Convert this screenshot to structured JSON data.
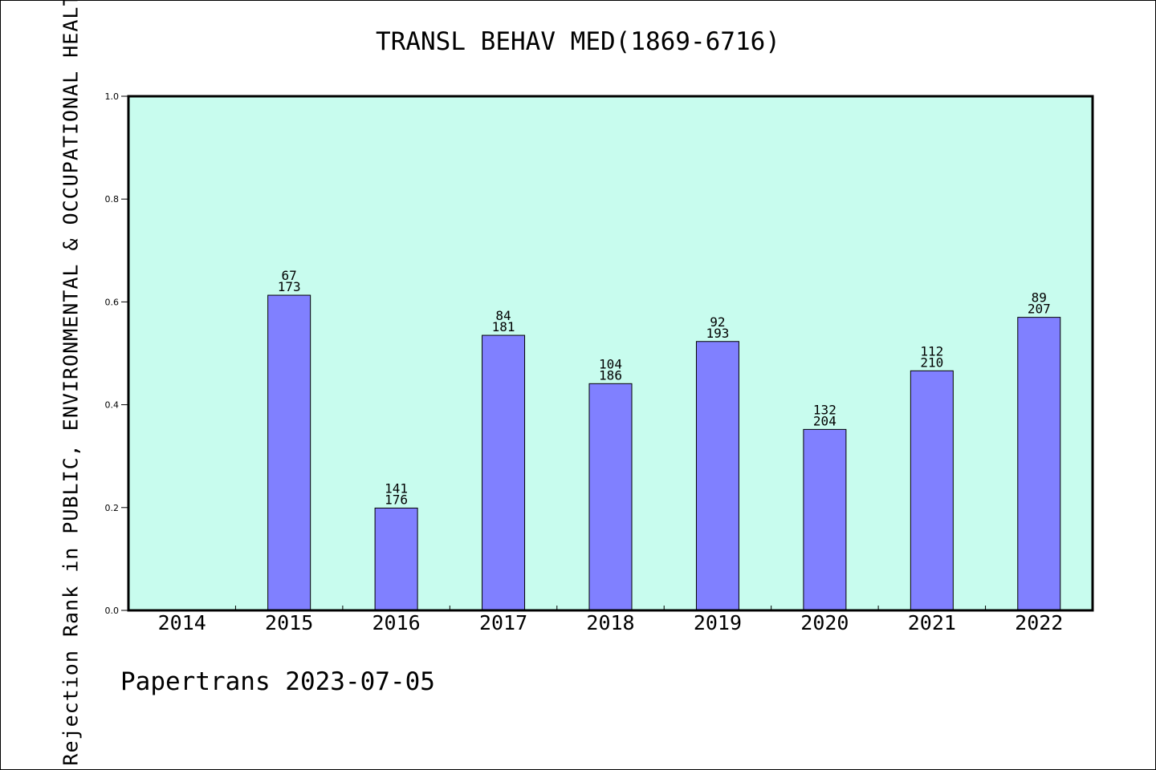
{
  "chart_data": {
    "type": "bar",
    "title": "TRANSL BEHAV MED(1869-6716)",
    "xlabel": "",
    "ylabel": "Rejection Rank in PUBLIC, ENVIRONMENTAL & OCCUPATIONAL HEALTH",
    "categories": [
      "2014",
      "2015",
      "2016",
      "2017",
      "2018",
      "2019",
      "2020",
      "2021",
      "2022"
    ],
    "values": [
      null,
      0.613,
      0.199,
      0.535,
      0.441,
      0.523,
      0.352,
      0.466,
      0.57
    ],
    "label_top": [
      "",
      "67",
      "141",
      "84",
      "104",
      "92",
      "132",
      "112",
      "89"
    ],
    "label_bottom": [
      "",
      "173",
      "176",
      "181",
      "186",
      "193",
      "204",
      "210",
      "207"
    ],
    "ylim": [
      0,
      1.0
    ],
    "yticks": [
      "0.0",
      "0.2",
      "0.4",
      "0.6",
      "0.8",
      "1.0"
    ],
    "grid": false,
    "colors": {
      "plot_bg": "#c8fcee",
      "bar_fill": "#8080ff",
      "bar_stroke": "#000000"
    }
  },
  "footer": "Papertrans 2023-07-05"
}
